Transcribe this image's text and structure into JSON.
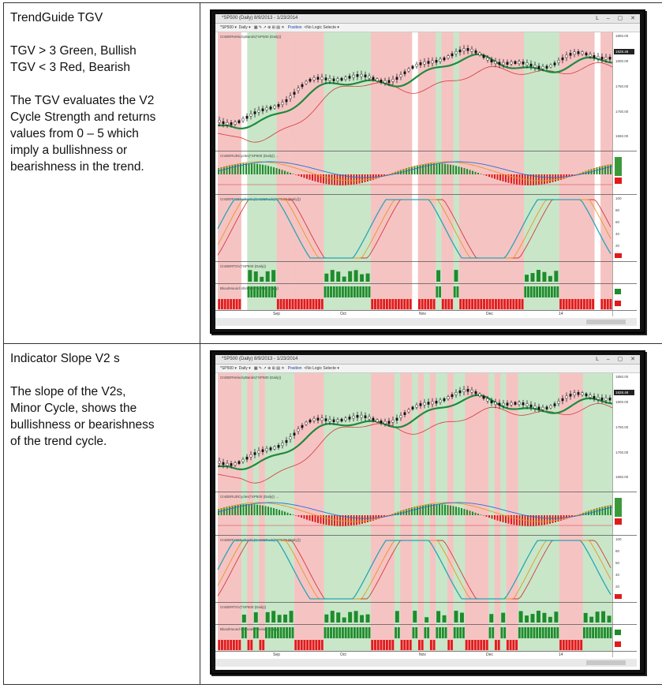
{
  "rows": [
    {
      "heading": "TrendGuide TGV",
      "paragraphs": [
        [
          "TGV > 3 Green, Bullish",
          "TGV < 3 Red, Bearish"
        ],
        [
          "The TGV evaluates the V2",
          "Cycle Strength and returns",
          "values from 0 – 5 which",
          "imply a bullishness or",
          "bearishness in the trend."
        ]
      ],
      "screenshot": {
        "window_title": "*SP500 (Daily)  8/9/2013 - 1/23/2014",
        "window_controls": "L – ▢ ✕",
        "toolbar_symbol": "*SP500 ▾",
        "toolbar_interval": "Daily ▾",
        "toolbar_mode": "Position",
        "toolbar_logic": "<No Logic Selecte ▾",
        "panel_titles": [
          "CmDERVelocityBands(*SP500 (Daily))",
          "CmDERUDCycles(*SP500 (Daily)) ...",
          "CmDERV2Stochastic(CmDERods(*SP500 (Daily)))",
          "CmDERTGV(*SP500 (Daily))",
          "BloodHound Ultimate Position (Daily)"
        ],
        "price_labels": [
          "1850.00",
          "1828.48",
          "1800.00",
          "1750.00",
          "1700.00",
          "1650.00"
        ],
        "stoch_labels": [
          "100",
          "80",
          "60",
          "40",
          "20",
          "0"
        ],
        "month_labels": [
          "Sep",
          "Oct",
          "Nov",
          "Dec",
          "14"
        ],
        "shading": [
          "r",
          "r",
          "r",
          "r",
          "w",
          "g",
          "g",
          "g",
          "g",
          "g",
          "r",
          "r",
          "r",
          "r",
          "r",
          "r",
          "r",
          "r",
          "g",
          "g",
          "g",
          "g",
          "g",
          "g",
          "g",
          "g",
          "r",
          "r",
          "r",
          "r",
          "r",
          "r",
          "r",
          "w",
          "r",
          "r",
          "r",
          "g",
          "r",
          "r",
          "g",
          "r",
          "r",
          "r",
          "r",
          "r",
          "r",
          "r",
          "r",
          "r",
          "r",
          "r",
          "g",
          "g",
          "g",
          "g",
          "g",
          "g",
          "r",
          "r",
          "r",
          "r",
          "r",
          "r",
          "w",
          "r",
          "r"
        ]
      }
    },
    {
      "heading": "Indicator Slope V2 s",
      "paragraphs": [
        [
          "The slope of the V2s,",
          "Minor Cycle, shows the",
          "bullishness or bearishness",
          "of the trend cycle."
        ]
      ],
      "screenshot": {
        "window_title": "*SP500 (Daily)  8/9/2013 - 1/23/2014",
        "window_controls": "L – ▢ ✕",
        "toolbar_symbol": "*SP500 ▾",
        "toolbar_interval": "Daily ▾",
        "toolbar_mode": "Position",
        "toolbar_logic": "<No Logic Selecte ▾",
        "panel_titles": [
          "CmDERVelocityBands(*SP500 (Daily))",
          "CmDERUDCycles(*SP500 (Daily)) ...",
          "CmDERV2Stochastic(CmDERods(*SP500 (Daily)))",
          "CmDERTGV(*SP500 (Daily))",
          "BloodHound Ultimate Position (Daily)"
        ],
        "price_labels": [
          "1850.00",
          "1828.48",
          "1800.00",
          "1750.00",
          "1700.00",
          "1650.00"
        ],
        "stoch_labels": [
          "100",
          "80",
          "60",
          "40",
          "20",
          "0"
        ],
        "month_labels": [
          "Sep",
          "Oct",
          "Nov",
          "Dec",
          "14"
        ],
        "shading": [
          "r",
          "r",
          "r",
          "r",
          "g",
          "r",
          "g",
          "r",
          "g",
          "g",
          "g",
          "g",
          "g",
          "r",
          "r",
          "r",
          "r",
          "r",
          "g",
          "g",
          "g",
          "g",
          "g",
          "g",
          "g",
          "g",
          "r",
          "r",
          "r",
          "r",
          "g",
          "r",
          "r",
          "g",
          "r",
          "g",
          "r",
          "g",
          "g",
          "r",
          "g",
          "g",
          "r",
          "r",
          "r",
          "r",
          "g",
          "r",
          "g",
          "r",
          "r",
          "g",
          "g",
          "g",
          "g",
          "g",
          "g",
          "g",
          "r",
          "r",
          "r",
          "r",
          "g",
          "g",
          "g",
          "g",
          "g"
        ]
      }
    }
  ],
  "colors": {
    "bull_bg": "#c9e6c9",
    "bear_bg": "#f6c3c3",
    "green_line": "#1f8a3c",
    "red_line": "#d23b3b",
    "cyan_line": "#27a7b3",
    "orange_line": "#e59a1e",
    "bar_green": "#1e8c2c",
    "bar_red": "#e01b1b"
  }
}
